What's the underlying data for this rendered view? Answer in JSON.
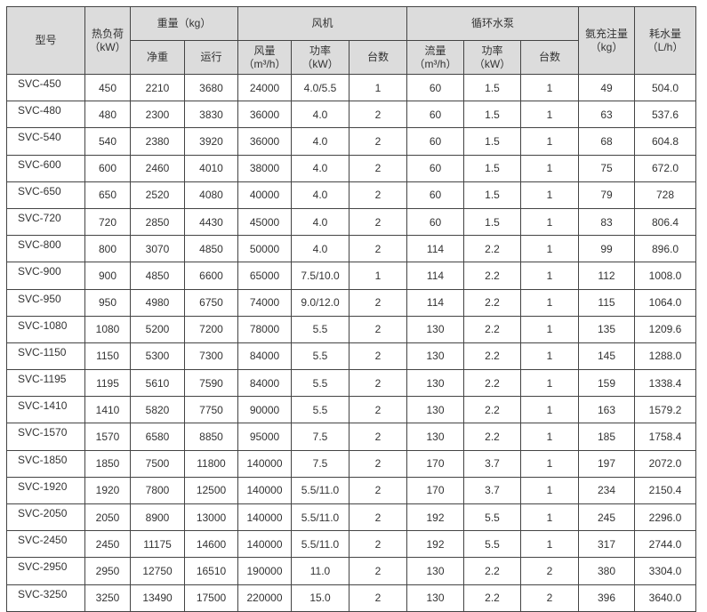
{
  "headers": {
    "model": "型号",
    "heat_load": "热负荷",
    "heat_load_unit": "（kW）",
    "weight": "重量（kg）",
    "net_weight": "净重",
    "operating_weight": "运行",
    "fan": "风机",
    "fan_airflow": "风量",
    "fan_airflow_unit": "（m³/h）",
    "fan_power": "功率",
    "fan_power_unit": "（kW）",
    "fan_qty": "台数",
    "pump": "循环水泵",
    "pump_flow": "流量",
    "pump_flow_unit": "（m³/h）",
    "pump_power": "功率",
    "pump_power_unit": "（kW）",
    "pump_qty": "台数",
    "ammonia": "氨充注量",
    "ammonia_unit": "（kg）",
    "water": "耗水量",
    "water_unit": "（L/h）"
  },
  "rows": [
    [
      "SVC-450",
      "450",
      "2210",
      "3680",
      "24000",
      "4.0/5.5",
      "1",
      "60",
      "1.5",
      "1",
      "49",
      "504.0"
    ],
    [
      "SVC-480",
      "480",
      "2300",
      "3830",
      "36000",
      "4.0",
      "2",
      "60",
      "1.5",
      "1",
      "63",
      "537.6"
    ],
    [
      "SVC-540",
      "540",
      "2380",
      "3920",
      "36000",
      "4.0",
      "2",
      "60",
      "1.5",
      "1",
      "68",
      "604.8"
    ],
    [
      "SVC-600",
      "600",
      "2460",
      "4010",
      "38000",
      "4.0",
      "2",
      "60",
      "1.5",
      "1",
      "75",
      "672.0"
    ],
    [
      "SVC-650",
      "650",
      "2520",
      "4080",
      "40000",
      "4.0",
      "2",
      "60",
      "1.5",
      "1",
      "79",
      "728"
    ],
    [
      "SVC-720",
      "720",
      "2850",
      "4430",
      "45000",
      "4.0",
      "2",
      "60",
      "1.5",
      "1",
      "83",
      "806.4"
    ],
    [
      "SVC-800",
      "800",
      "3070",
      "4850",
      "50000",
      "4.0",
      "2",
      "114",
      "2.2",
      "1",
      "99",
      "896.0"
    ],
    [
      "SVC-900",
      "900",
      "4850",
      "6600",
      "65000",
      "7.5/10.0",
      "1",
      "114",
      "2.2",
      "1",
      "112",
      "1008.0"
    ],
    [
      "SVC-950",
      "950",
      "4980",
      "6750",
      "74000",
      "9.0/12.0",
      "2",
      "114",
      "2.2",
      "1",
      "115",
      "1064.0"
    ],
    [
      "SVC-1080",
      "1080",
      "5200",
      "7200",
      "78000",
      "5.5",
      "2",
      "130",
      "2.2",
      "1",
      "135",
      "1209.6"
    ],
    [
      "SVC-1150",
      "1150",
      "5300",
      "7300",
      "84000",
      "5.5",
      "2",
      "130",
      "2.2",
      "1",
      "145",
      "1288.0"
    ],
    [
      "SVC-1195",
      "1195",
      "5610",
      "7590",
      "84000",
      "5.5",
      "2",
      "130",
      "2.2",
      "1",
      "159",
      "1338.4"
    ],
    [
      "SVC-1410",
      "1410",
      "5820",
      "7750",
      "90000",
      "5.5",
      "2",
      "130",
      "2.2",
      "1",
      "163",
      "1579.2"
    ],
    [
      "SVC-1570",
      "1570",
      "6580",
      "8850",
      "95000",
      "7.5",
      "2",
      "130",
      "2.2",
      "1",
      "185",
      "1758.4"
    ],
    [
      "SVC-1850",
      "1850",
      "7500",
      "11800",
      "140000",
      "7.5",
      "2",
      "170",
      "3.7",
      "1",
      "197",
      "2072.0"
    ],
    [
      "SVC-1920",
      "1920",
      "7800",
      "12500",
      "140000",
      "5.5/11.0",
      "2",
      "170",
      "3.7",
      "1",
      "234",
      "2150.4"
    ],
    [
      "SVC-2050",
      "2050",
      "8900",
      "13000",
      "140000",
      "5.5/11.0",
      "2",
      "192",
      "5.5",
      "1",
      "245",
      "2296.0"
    ],
    [
      "SVC-2450",
      "2450",
      "11175",
      "14600",
      "140000",
      "5.5/11.0",
      "2",
      "192",
      "5.5",
      "1",
      "317",
      "2744.0"
    ],
    [
      "SVC-2950",
      "2950",
      "12750",
      "16510",
      "190000",
      "11.0",
      "2",
      "130",
      "2.2",
      "2",
      "380",
      "3304.0"
    ],
    [
      "SVC-3250",
      "3250",
      "13490",
      "17500",
      "220000",
      "15.0",
      "2",
      "130",
      "2.2",
      "2",
      "396",
      "3640.0"
    ]
  ]
}
